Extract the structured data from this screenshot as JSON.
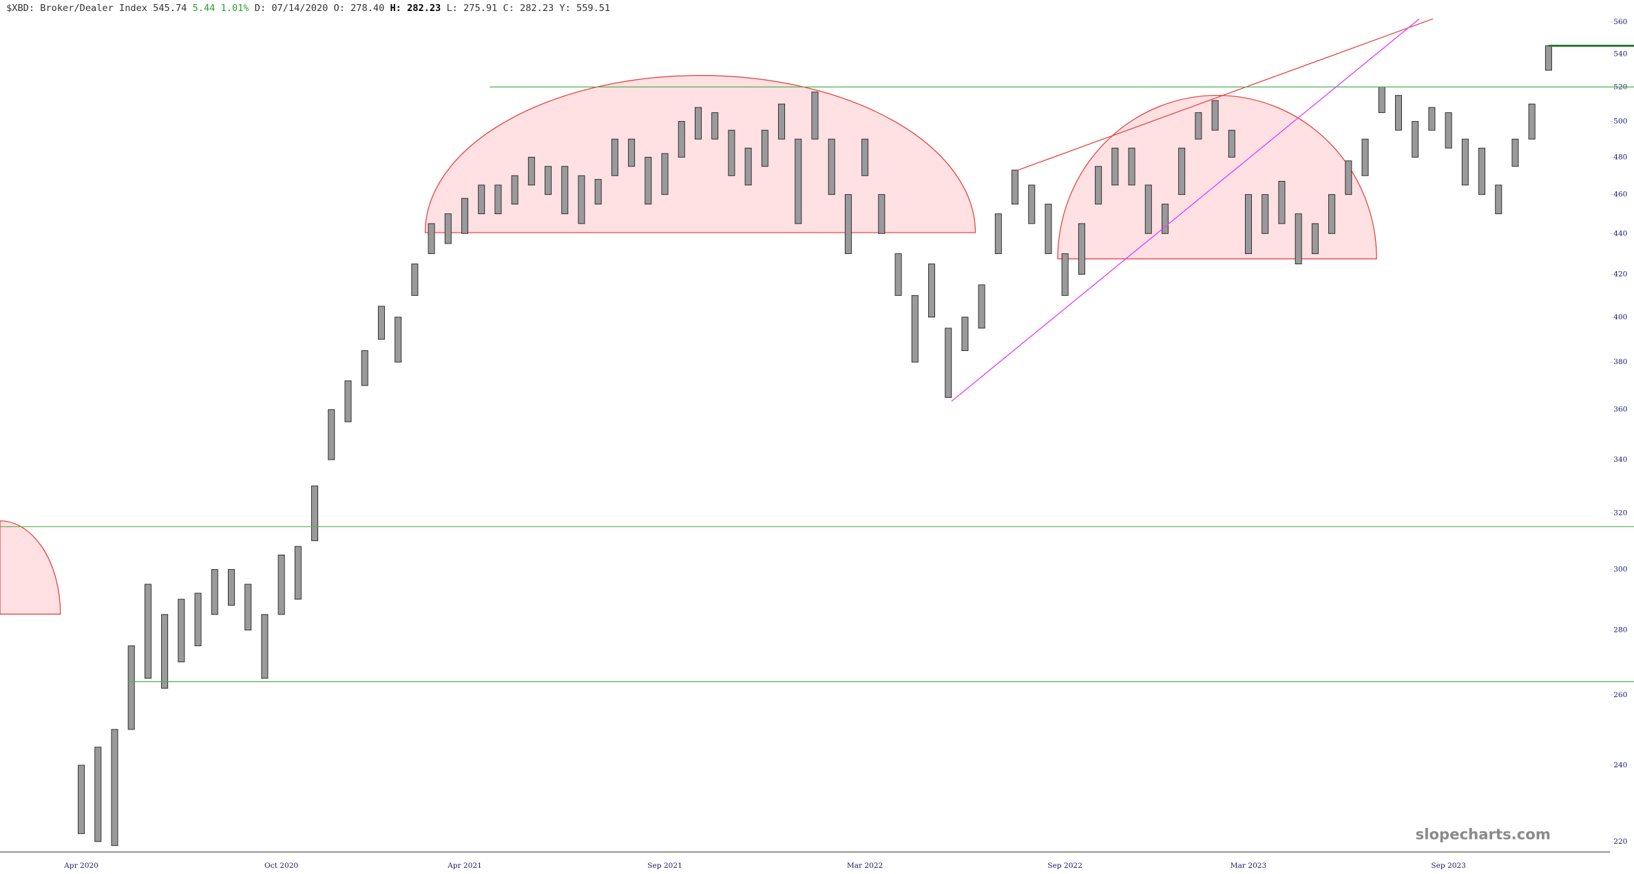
{
  "header": {
    "symbol": "$XBD: Broker/Dealer Index 545.74",
    "change": "5.44 1.01%",
    "date": "D: 07/14/2020",
    "open": "O: 278.40",
    "high": "H: 282.23",
    "low": "L: 275.91",
    "close": "C: 282.23",
    "y": "Y: 559.51"
  },
  "watermark": "slopecharts.com",
  "chart_data": {
    "type": "range",
    "categories": [
      "Apr 2020",
      null,
      null,
      null,
      null,
      null,
      null,
      null,
      null,
      null,
      null,
      null,
      "Oct 2020",
      null,
      null,
      null,
      null,
      null,
      null,
      null,
      null,
      null,
      null,
      "Apr 2021",
      null,
      null,
      null,
      null,
      null,
      null,
      null,
      null,
      null,
      null,
      null,
      "Sep 2021",
      null,
      null,
      null,
      null,
      null,
      null,
      null,
      null,
      null,
      null,
      null,
      "Mar 2022",
      null,
      null,
      null,
      null,
      null,
      null,
      null,
      null,
      null,
      null,
      null,
      "Sep 2022",
      null,
      null,
      null,
      null,
      null,
      null,
      null,
      null,
      null,
      null,
      "Mar 2023",
      null,
      null,
      null,
      null,
      null,
      null,
      null,
      null,
      null,
      null,
      null,
      "Sep 2023",
      null,
      null,
      null,
      null,
      null,
      null
    ],
    "series": [
      {
        "color": "#9a9a9a",
        "high": [
          240,
          245,
          250,
          275,
          295,
          285,
          290,
          292,
          300,
          300,
          295,
          285,
          305,
          308,
          330,
          360,
          372,
          385,
          405,
          400,
          425,
          445,
          450,
          458,
          465,
          465,
          470,
          480,
          475,
          475,
          470,
          468,
          490,
          490,
          480,
          482,
          500,
          508,
          505,
          495,
          485,
          495,
          510,
          490,
          517,
          490,
          460,
          490,
          460,
          430,
          410,
          425,
          395,
          400,
          415,
          450,
          473,
          465,
          455,
          430,
          445,
          475,
          485,
          485,
          465,
          455,
          485,
          505,
          512,
          495,
          460,
          460,
          467,
          450,
          445,
          460,
          478,
          490,
          520,
          515,
          500,
          508,
          505,
          490,
          485,
          465,
          490,
          510,
          545
        ],
        "low": [
          222,
          220,
          219,
          250,
          265,
          262,
          270,
          275,
          285,
          288,
          280,
          265,
          285,
          290,
          310,
          340,
          355,
          370,
          390,
          380,
          410,
          430,
          435,
          440,
          450,
          450,
          455,
          465,
          460,
          450,
          445,
          455,
          470,
          475,
          455,
          460,
          480,
          490,
          490,
          470,
          465,
          475,
          490,
          445,
          490,
          460,
          430,
          470,
          440,
          410,
          380,
          400,
          365,
          385,
          395,
          430,
          455,
          445,
          430,
          410,
          420,
          455,
          465,
          465,
          440,
          440,
          460,
          490,
          495,
          480,
          430,
          440,
          445,
          425,
          430,
          440,
          460,
          470,
          505,
          495,
          480,
          495,
          485,
          465,
          460,
          450,
          475,
          490,
          530
        ]
      }
    ],
    "hlines": [
      {
        "value": 520,
        "color": "#4caf50"
      },
      {
        "value": 315,
        "color": "#4caf50"
      },
      {
        "value": 264,
        "color": "#4caf50"
      },
      {
        "value": 545,
        "color": "#2e7d32"
      }
    ],
    "ylim": [
      217.4,
      574.2
    ],
    "log_scale": true,
    "yticks": [
      220,
      240,
      260,
      280,
      300,
      320,
      340,
      360,
      380,
      400,
      420,
      440,
      460,
      480,
      500,
      520,
      540,
      560
    ]
  }
}
